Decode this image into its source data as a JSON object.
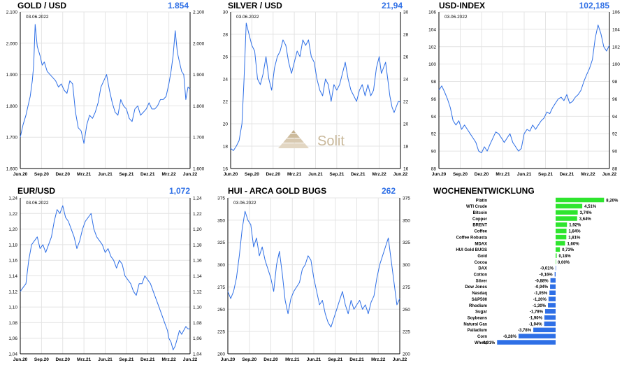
{
  "colors": {
    "line": "#2e6fe6",
    "value": "#2e6fe6",
    "bar_pos": "#2ee52e",
    "bar_neg": "#2e6fe6",
    "grid": "#e4e4e4",
    "axis": "#000000",
    "watermark": "#c9b89a"
  },
  "watermark_text": "Solit",
  "chart_data": [
    {
      "id": "gold",
      "type": "line",
      "title": "GOLD / USD",
      "value": "1.854",
      "date": "03.06.2022",
      "ylim": [
        1600,
        2100
      ],
      "yticks": [
        1600,
        1700,
        1800,
        1900,
        2000,
        2100
      ],
      "ytick_labels": [
        "1.600",
        "1.700",
        "1.800",
        "1.900",
        "2.000",
        "2.100"
      ],
      "xtick_labels": [
        "Jun.20",
        "Sep.20",
        "Dez.20",
        "Mrz.21",
        "Jun.21",
        "Sep.21",
        "Dez.21",
        "Mrz.22",
        "Jun.22"
      ],
      "x_range": [
        0,
        24
      ],
      "series": [
        {
          "x": [
            0,
            0.4,
            0.8,
            1.1,
            1.4,
            1.7,
            1.9,
            2.1,
            2.4,
            2.8,
            3.1,
            3.4,
            3.8,
            4.2,
            4.6,
            5.0,
            5.4,
            5.8,
            6.2,
            6.6,
            7.0,
            7.4,
            7.8,
            8.2,
            8.6,
            9.0,
            9.4,
            9.8,
            10.2,
            10.6,
            11.0,
            11.4,
            11.8,
            12.2,
            12.6,
            13.0,
            13.4,
            13.8,
            14.2,
            14.6,
            15.0,
            15.4,
            15.8,
            16.2,
            16.6,
            17.0,
            17.4,
            17.8,
            18.2,
            18.6,
            19.0,
            19.4,
            19.8,
            20.2,
            20.6,
            21.0,
            21.3,
            21.6,
            21.9,
            22.2,
            22.5,
            22.8,
            23.1,
            23.4,
            23.7,
            24.0
          ],
          "y": [
            1700,
            1740,
            1770,
            1800,
            1830,
            1880,
            1930,
            2060,
            1990,
            1960,
            1930,
            1940,
            1910,
            1900,
            1890,
            1880,
            1860,
            1870,
            1850,
            1840,
            1880,
            1870,
            1780,
            1730,
            1720,
            1680,
            1740,
            1770,
            1760,
            1780,
            1810,
            1860,
            1880,
            1900,
            1850,
            1810,
            1780,
            1770,
            1820,
            1800,
            1790,
            1760,
            1750,
            1790,
            1800,
            1770,
            1780,
            1790,
            1810,
            1790,
            1790,
            1800,
            1820,
            1820,
            1830,
            1870,
            1910,
            1960,
            2040,
            1970,
            1940,
            1910,
            1900,
            1820,
            1860,
            1854
          ]
        }
      ]
    },
    {
      "id": "silver",
      "type": "line",
      "title": "SILVER / USD",
      "value": "21,94",
      "date": "03.06.2022",
      "ylim": [
        16,
        30
      ],
      "yticks": [
        16,
        18,
        20,
        22,
        24,
        26,
        28,
        30
      ],
      "ytick_labels": [
        "16",
        "18",
        "20",
        "22",
        "24",
        "26",
        "28",
        "30"
      ],
      "xtick_labels": [
        "Jun.20",
        "Sep.20",
        "Dez.20",
        "Mrz.21",
        "Jun.21",
        "Sep.21",
        "Dez.21",
        "Mrz.22",
        "Jun.22"
      ],
      "x_range": [
        0,
        24
      ],
      "series": [
        {
          "x": [
            0,
            0.4,
            0.8,
            1.2,
            1.6,
            1.9,
            2.2,
            2.6,
            3.0,
            3.4,
            3.8,
            4.2,
            4.6,
            5.0,
            5.4,
            5.8,
            6.2,
            6.6,
            7.0,
            7.4,
            7.8,
            8.2,
            8.6,
            9.0,
            9.4,
            9.8,
            10.2,
            10.6,
            11.0,
            11.4,
            11.8,
            12.2,
            12.6,
            13.0,
            13.4,
            13.8,
            14.2,
            14.6,
            15.0,
            15.4,
            15.8,
            16.2,
            16.6,
            17.0,
            17.4,
            17.8,
            18.2,
            18.6,
            19.0,
            19.4,
            19.8,
            20.2,
            20.6,
            21.0,
            21.3,
            21.6,
            21.9,
            22.2,
            22.5,
            22.8,
            23.1,
            23.4,
            23.7,
            24.0
          ],
          "y": [
            17.8,
            17.6,
            18.0,
            18.5,
            20.0,
            24.0,
            29.0,
            28.0,
            27.0,
            26.5,
            24.0,
            23.5,
            24.5,
            26.0,
            24.0,
            23.0,
            25.0,
            26.0,
            26.5,
            27.5,
            27.0,
            25.5,
            24.5,
            25.5,
            26.5,
            26.0,
            27.5,
            27.0,
            27.5,
            26.0,
            25.5,
            24.0,
            23.0,
            22.5,
            24.0,
            23.5,
            22.0,
            23.5,
            23.0,
            23.5,
            24.5,
            25.5,
            24.0,
            23.0,
            22.5,
            22.0,
            23.0,
            23.5,
            22.5,
            23.5,
            22.5,
            23.0,
            25.0,
            26.0,
            24.5,
            25.0,
            25.5,
            24.0,
            22.5,
            21.5,
            21.0,
            21.5,
            22.0,
            21.94
          ]
        }
      ]
    },
    {
      "id": "usd",
      "type": "line",
      "title": "USD-INDEX",
      "value": "102,185",
      "date": "03.06.2022",
      "ylim": [
        88,
        106
      ],
      "yticks": [
        88,
        90,
        92,
        94,
        96,
        98,
        100,
        102,
        104,
        106
      ],
      "ytick_labels": [
        "88",
        "90",
        "92",
        "94",
        "96",
        "98",
        "100",
        "102",
        "104",
        "106"
      ],
      "xtick_labels": [
        "Jun.20",
        "Sep.20",
        "Dez.20",
        "Mrz.21",
        "Jun.21",
        "Sep.21",
        "Dez.21",
        "Mrz.22",
        "Jun.22"
      ],
      "x_range": [
        0,
        24
      ],
      "series": [
        {
          "x": [
            0,
            0.4,
            0.8,
            1.2,
            1.6,
            2.0,
            2.4,
            2.8,
            3.2,
            3.6,
            4.0,
            4.4,
            4.8,
            5.2,
            5.6,
            6.0,
            6.4,
            6.8,
            7.2,
            7.6,
            8.0,
            8.4,
            8.8,
            9.2,
            9.6,
            10.0,
            10.4,
            10.8,
            11.2,
            11.6,
            12.0,
            12.4,
            12.8,
            13.2,
            13.6,
            14.0,
            14.4,
            14.8,
            15.2,
            15.6,
            16.0,
            16.4,
            16.8,
            17.2,
            17.6,
            18.0,
            18.4,
            18.8,
            19.2,
            19.6,
            20.0,
            20.4,
            20.8,
            21.2,
            21.6,
            22.0,
            22.4,
            22.8,
            23.2,
            23.6,
            24.0
          ],
          "y": [
            97.0,
            97.5,
            96.8,
            96.0,
            95.0,
            93.5,
            93.0,
            93.5,
            92.5,
            93.0,
            92.5,
            92.0,
            91.5,
            91.0,
            90.0,
            89.8,
            90.5,
            90.0,
            90.8,
            91.5,
            92.2,
            92.0,
            91.5,
            91.0,
            91.5,
            92.0,
            91.0,
            90.5,
            90.0,
            90.3,
            92.0,
            92.5,
            92.3,
            93.0,
            92.5,
            93.0,
            93.5,
            93.8,
            94.5,
            94.3,
            95.0,
            95.5,
            96.0,
            96.2,
            95.8,
            96.5,
            95.5,
            95.7,
            96.2,
            96.5,
            97.0,
            98.0,
            98.8,
            99.5,
            100.5,
            103.0,
            104.5,
            103.5,
            102.0,
            101.5,
            102.185
          ]
        }
      ]
    },
    {
      "id": "eur",
      "type": "line",
      "title": "EUR/USD",
      "value": "1,072",
      "date": "03.06.2022",
      "ylim": [
        1.04,
        1.24
      ],
      "yticks": [
        1.04,
        1.06,
        1.08,
        1.1,
        1.12,
        1.14,
        1.16,
        1.18,
        1.2,
        1.22,
        1.24
      ],
      "ytick_labels": [
        "1,04",
        "1,06",
        "1,08",
        "1,10",
        "1,12",
        "1,14",
        "1,16",
        "1,18",
        "1,20",
        "1,22",
        "1,24"
      ],
      "xtick_labels": [
        "Jun.20",
        "Sep.20",
        "Dez.20",
        "Mrz.21",
        "Jun.21",
        "Sep.21",
        "Dez.21",
        "Mrz.22",
        "Jun.22"
      ],
      "x_range": [
        0,
        24
      ],
      "series": [
        {
          "x": [
            0,
            0.4,
            0.8,
            1.2,
            1.6,
            2.0,
            2.4,
            2.8,
            3.2,
            3.6,
            4.0,
            4.4,
            4.8,
            5.2,
            5.6,
            6.0,
            6.4,
            6.8,
            7.2,
            7.6,
            8.0,
            8.4,
            8.8,
            9.2,
            9.6,
            10.0,
            10.4,
            10.8,
            11.2,
            11.6,
            12.0,
            12.4,
            12.8,
            13.2,
            13.6,
            14.0,
            14.4,
            14.8,
            15.2,
            15.6,
            16.0,
            16.4,
            16.8,
            17.2,
            17.6,
            18.0,
            18.4,
            18.8,
            19.2,
            19.6,
            20.0,
            20.4,
            20.8,
            21.0,
            21.3,
            21.6,
            21.9,
            22.2,
            22.5,
            22.8,
            23.1,
            23.4,
            23.7,
            24.0
          ],
          "y": [
            1.12,
            1.125,
            1.13,
            1.16,
            1.18,
            1.185,
            1.19,
            1.175,
            1.18,
            1.17,
            1.18,
            1.19,
            1.21,
            1.225,
            1.22,
            1.23,
            1.215,
            1.21,
            1.2,
            1.19,
            1.175,
            1.185,
            1.2,
            1.21,
            1.215,
            1.22,
            1.2,
            1.19,
            1.185,
            1.18,
            1.17,
            1.175,
            1.165,
            1.16,
            1.15,
            1.16,
            1.155,
            1.14,
            1.135,
            1.13,
            1.12,
            1.115,
            1.13,
            1.13,
            1.14,
            1.135,
            1.13,
            1.12,
            1.11,
            1.1,
            1.09,
            1.08,
            1.07,
            1.06,
            1.055,
            1.045,
            1.05,
            1.06,
            1.07,
            1.065,
            1.07,
            1.075,
            1.072,
            1.072
          ]
        }
      ]
    },
    {
      "id": "hui",
      "type": "line",
      "title": "HUI - ARCA GOLD BUGS",
      "value": "262",
      "date": "03.06.2022",
      "ylim": [
        200,
        375
      ],
      "yticks": [
        200,
        225,
        250,
        275,
        300,
        325,
        350,
        375
      ],
      "ytick_labels": [
        "200",
        "225",
        "250",
        "275",
        "300",
        "325",
        "350",
        "375"
      ],
      "xtick_labels": [
        "Jun.20",
        "Sep.20",
        "Dez.20",
        "Mrz.21",
        "Jun.21",
        "Sep.21",
        "Dez.21",
        "Mrz.22",
        "Jun.22"
      ],
      "x_range": [
        0,
        24
      ],
      "series": [
        {
          "x": [
            0,
            0.4,
            0.8,
            1.2,
            1.6,
            2.0,
            2.4,
            2.8,
            3.2,
            3.6,
            4.0,
            4.4,
            4.8,
            5.2,
            5.6,
            6.0,
            6.4,
            6.8,
            7.2,
            7.6,
            8.0,
            8.4,
            8.8,
            9.2,
            9.6,
            10.0,
            10.4,
            10.8,
            11.2,
            11.6,
            12.0,
            12.4,
            12.8,
            13.2,
            13.6,
            14.0,
            14.4,
            14.8,
            15.2,
            15.6,
            16.0,
            16.4,
            16.8,
            17.2,
            17.6,
            18.0,
            18.4,
            18.8,
            19.2,
            19.6,
            20.0,
            20.4,
            20.8,
            21.2,
            21.6,
            22.0,
            22.4,
            22.8,
            23.2,
            23.6,
            24.0
          ],
          "y": [
            270,
            262,
            270,
            285,
            310,
            340,
            360,
            350,
            345,
            320,
            330,
            310,
            320,
            305,
            295,
            285,
            270,
            300,
            315,
            290,
            260,
            245,
            262,
            270,
            275,
            280,
            295,
            300,
            310,
            305,
            285,
            270,
            255,
            260,
            245,
            235,
            230,
            240,
            250,
            260,
            270,
            255,
            245,
            260,
            250,
            255,
            260,
            250,
            255,
            245,
            258,
            265,
            285,
            300,
            310,
            320,
            330,
            305,
            280,
            255,
            262
          ]
        }
      ]
    },
    {
      "id": "weekly",
      "type": "bar",
      "title": "WOCHENENTWICKLUNG",
      "categories": [
        "Platin",
        "WTI Crude",
        "Bitcoin",
        "Copper",
        "BRENT",
        "Coffee",
        "Coffee Robusta",
        "MDAX",
        "HUI Gold BUGS",
        "Gold",
        "Cocoa",
        "DAX",
        "Cotton",
        "Silver",
        "Dow Jones",
        "Nasdaq",
        "S&P500",
        "Rhodium",
        "Sugar",
        "Soybeans",
        "Natural Gas",
        "Palladium",
        "Corn",
        "Wheat"
      ],
      "values": [
        8.2,
        4.51,
        3.74,
        3.64,
        1.92,
        1.84,
        1.81,
        1.6,
        0.73,
        0.18,
        0.0,
        -0.01,
        -0.16,
        -0.88,
        -0.94,
        -1.05,
        -1.2,
        -1.3,
        -1.78,
        -1.9,
        -1.94,
        -3.78,
        -6.28,
        -9.91
      ],
      "labels": [
        "8,20%",
        "4,51%",
        "3,74%",
        "3,64%",
        "1,92%",
        "1,84%",
        "1,81%",
        "1,60%",
        "0,73%",
        "0,18%",
        "0,00%",
        "-0,01%",
        "-0,16%",
        "-0,88%",
        "-0,94%",
        "-1,05%",
        "-1,20%",
        "-1,30%",
        "-1,78%",
        "-1,90%",
        "-1,94%",
        "-3,78%",
        "-6,28%",
        "-9,91%"
      ]
    }
  ]
}
